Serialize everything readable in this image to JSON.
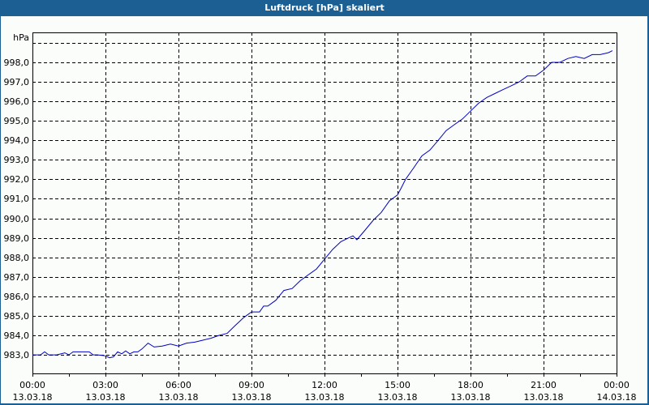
{
  "window": {
    "title": "Luftdruck [hPa] skaliert"
  },
  "colors": {
    "titlebar": "#1c6093",
    "background": "#fbfdfb",
    "line": "#0000c8",
    "grid": "#000000"
  },
  "chart_data": {
    "type": "line",
    "title": "Luftdruck [hPa] skaliert",
    "xlabel": "",
    "ylabel": "hPa",
    "ylim": [
      982.06,
      999.54
    ],
    "grid": true,
    "legend": null,
    "y_ticks": [
      "983,0",
      "984,0",
      "985,0",
      "986,0",
      "987,0",
      "988,0",
      "989,0",
      "990,0",
      "991,0",
      "992,0",
      "993,0",
      "994,0",
      "995,0",
      "996,0",
      "997,0",
      "998,0"
    ],
    "y_tick_values": [
      983,
      984,
      985,
      986,
      987,
      988,
      989,
      990,
      991,
      992,
      993,
      994,
      995,
      996,
      997,
      998
    ],
    "x_ticks": [
      {
        "time": "00:00",
        "date": "13.03.18"
      },
      {
        "time": "03:00",
        "date": "13.03.18"
      },
      {
        "time": "06:00",
        "date": "13.03.18"
      },
      {
        "time": "09:00",
        "date": "13.03.18"
      },
      {
        "time": "12:00",
        "date": "13.03.18"
      },
      {
        "time": "15:00",
        "date": "13.03.18"
      },
      {
        "time": "18:00",
        "date": "13.03.18"
      },
      {
        "time": "21:00",
        "date": "13.03.18"
      },
      {
        "time": "00:00",
        "date": "14.03.18"
      }
    ],
    "x_hours": [
      0,
      0.33,
      0.5,
      0.67,
      1,
      1.33,
      1.5,
      1.67,
      2,
      2.33,
      2.5,
      2.67,
      3,
      3.17,
      3.33,
      3.5,
      3.67,
      3.83,
      4,
      4.17,
      4.33,
      4.5,
      4.75,
      5,
      5.33,
      5.67,
      6,
      6.33,
      6.67,
      7,
      7.33,
      7.67,
      8,
      8.33,
      8.5,
      8.67,
      9,
      9.33,
      9.5,
      9.67,
      10,
      10.33,
      10.67,
      11,
      11.33,
      11.67,
      12,
      12.33,
      12.67,
      13,
      13.17,
      13.33,
      13.67,
      14,
      14.33,
      14.67,
      15,
      15.17,
      15.33,
      15.67,
      16,
      16.33,
      16.67,
      17,
      17.33,
      17.67,
      18,
      18.33,
      18.67,
      19,
      19.33,
      19.67,
      20,
      20.33,
      20.67,
      21,
      21.33,
      21.67,
      22,
      22.33,
      22.67,
      23,
      23.33,
      23.67,
      23.83
    ],
    "series": [
      {
        "name": "Luftdruck",
        "unit": "hPa",
        "values": [
          983.0,
          983.0,
          983.15,
          983.0,
          983.0,
          983.1,
          983.0,
          983.15,
          983.15,
          983.15,
          983.0,
          983.0,
          982.95,
          982.85,
          982.9,
          983.15,
          983.05,
          983.2,
          983.05,
          983.15,
          983.15,
          983.3,
          983.6,
          983.4,
          983.45,
          983.55,
          983.45,
          983.6,
          983.65,
          983.75,
          983.85,
          984.0,
          984.1,
          984.5,
          984.7,
          984.9,
          985.2,
          985.2,
          985.5,
          985.5,
          985.8,
          986.3,
          986.4,
          986.8,
          987.1,
          987.4,
          987.9,
          988.4,
          988.8,
          989.0,
          989.1,
          988.9,
          989.4,
          989.9,
          990.3,
          990.9,
          991.2,
          991.6,
          992.0,
          992.6,
          993.2,
          993.5,
          994.0,
          994.5,
          994.8,
          995.1,
          995.5,
          995.9,
          996.2,
          996.4,
          996.6,
          996.8,
          997.0,
          997.3,
          997.3,
          997.6,
          998.0,
          998.0,
          998.2,
          998.3,
          998.2,
          998.4,
          998.4,
          998.5,
          998.6
        ]
      }
    ]
  }
}
